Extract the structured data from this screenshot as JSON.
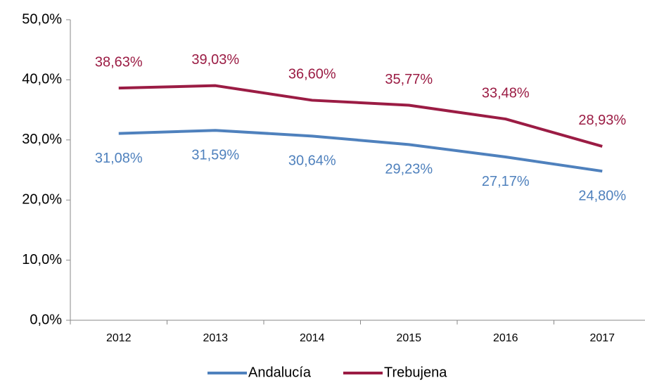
{
  "chart_data": {
    "type": "line",
    "categories": [
      "2012",
      "2013",
      "2014",
      "2015",
      "2016",
      "2017"
    ],
    "series": [
      {
        "name": "Andalucía",
        "color": "#4f81bd",
        "values": [
          31.08,
          31.59,
          30.64,
          29.23,
          27.17,
          24.8
        ],
        "value_labels": [
          "31,08%",
          "31,59%",
          "30,64%",
          "29,23%",
          "27,17%",
          "24,80%"
        ]
      },
      {
        "name": "Trebujena",
        "color": "#9b1c44",
        "values": [
          38.63,
          39.03,
          36.6,
          35.77,
          33.48,
          28.93
        ],
        "value_labels": [
          "38,63%",
          "39,03%",
          "36,60%",
          "35,77%",
          "33,48%",
          "28,93%"
        ]
      }
    ],
    "ylim": [
      0,
      50
    ],
    "yticks": [
      {
        "value": 0,
        "label": "0,0%"
      },
      {
        "value": 10,
        "label": "10,0%"
      },
      {
        "value": 20,
        "label": "20,0%"
      },
      {
        "value": 30,
        "label": "30,0%"
      },
      {
        "value": 40,
        "label": "40,0%"
      },
      {
        "value": 50,
        "label": "50,0%"
      }
    ],
    "grid": false,
    "legend": "bottom"
  }
}
